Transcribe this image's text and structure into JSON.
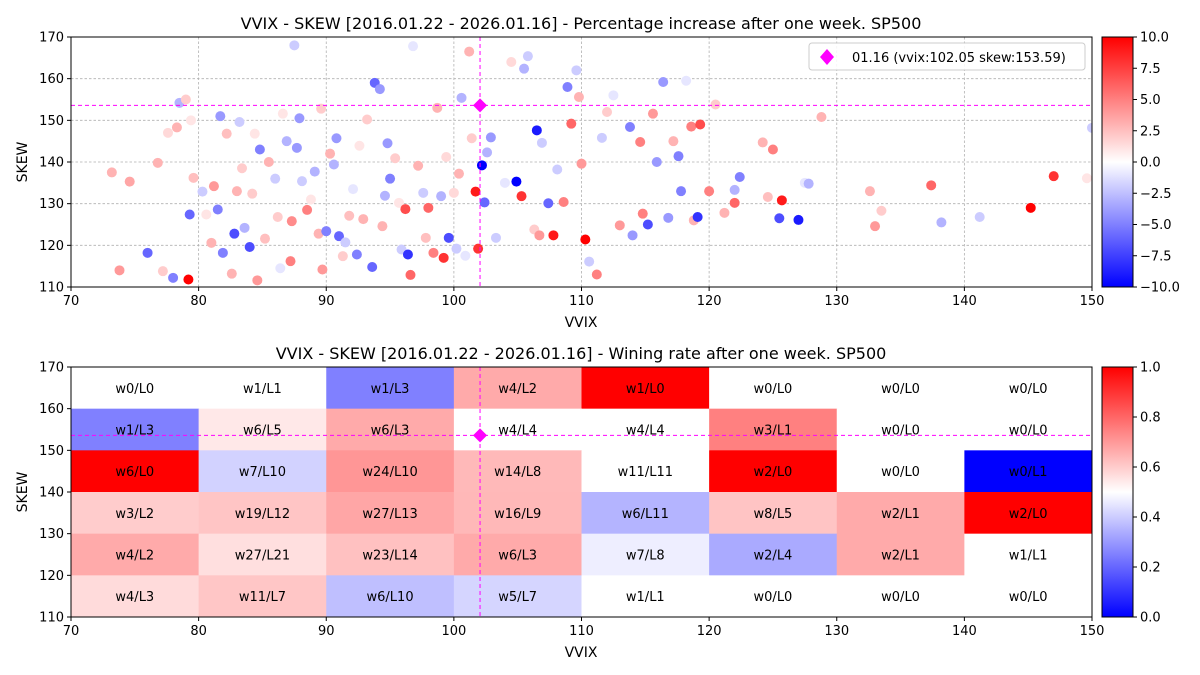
{
  "chart_data": [
    {
      "type": "scatter",
      "title": "VVIX - SKEW [2016.01.22 - 2026.01.16]  - Percentage increase after one week. SP500",
      "xlabel": "VVIX",
      "ylabel": "SKEW",
      "xlim": [
        70,
        150
      ],
      "ylim": [
        110,
        170
      ],
      "xticks": [
        "70",
        "80",
        "90",
        "100",
        "110",
        "120",
        "130",
        "140",
        "150"
      ],
      "yticks": [
        "110",
        "120",
        "130",
        "140",
        "150",
        "160",
        "170"
      ],
      "grid": true,
      "legend": {
        "location": "top-right",
        "label": "01.16 (vvix:102.05 skew:153.59)"
      },
      "colorbar": {
        "min": -10.0,
        "max": 10.0,
        "ticks": [
          "10.0",
          "7.5",
          "5.0",
          "2.5",
          "0.0",
          "−2.5",
          "−5.0",
          "−7.5",
          "−10.0"
        ]
      },
      "current": {
        "x": 102.05,
        "y": 153.59,
        "color": "#ff00ff"
      },
      "points": [
        [
          73.2,
          137.5,
          3.0
        ],
        [
          73.8,
          114.0,
          4.0
        ],
        [
          74.6,
          135.3,
          3.5
        ],
        [
          76.0,
          118.2,
          -6.0
        ],
        [
          76.8,
          139.8,
          3.0
        ],
        [
          77.2,
          113.8,
          2.0
        ],
        [
          77.6,
          147.0,
          1.5
        ],
        [
          78.0,
          112.2,
          -5.0
        ],
        [
          78.3,
          148.3,
          3.0
        ],
        [
          78.5,
          154.2,
          -3.0
        ],
        [
          79.0,
          155.0,
          2.0
        ],
        [
          79.2,
          111.8,
          10.0
        ],
        [
          79.3,
          127.4,
          -6.0
        ],
        [
          79.4,
          150.0,
          1.0
        ],
        [
          79.6,
          136.2,
          2.5
        ],
        [
          80.3,
          132.9,
          -2.0
        ],
        [
          80.6,
          127.4,
          1.0
        ],
        [
          81.0,
          120.6,
          3.0
        ],
        [
          81.2,
          134.2,
          4.0
        ],
        [
          81.5,
          128.6,
          -5.0
        ],
        [
          81.7,
          151.0,
          -4.0
        ],
        [
          81.9,
          118.2,
          -5.0
        ],
        [
          82.2,
          146.8,
          2.5
        ],
        [
          82.6,
          113.2,
          3.0
        ],
        [
          82.8,
          122.8,
          -7.0
        ],
        [
          83.0,
          133.0,
          3.0
        ],
        [
          83.2,
          149.6,
          -2.0
        ],
        [
          83.4,
          138.5,
          2.0
        ],
        [
          83.6,
          124.2,
          -3.0
        ],
        [
          84.0,
          119.6,
          -7.0
        ],
        [
          84.2,
          132.4,
          2.0
        ],
        [
          84.4,
          146.8,
          1.0
        ],
        [
          84.6,
          111.6,
          4.0
        ],
        [
          84.8,
          143.0,
          -5.0
        ],
        [
          85.2,
          121.6,
          2.5
        ],
        [
          85.5,
          140.0,
          3.0
        ],
        [
          86.0,
          136.0,
          -2.0
        ],
        [
          86.2,
          126.8,
          2.0
        ],
        [
          86.4,
          114.5,
          -1.0
        ],
        [
          86.6,
          151.6,
          1.0
        ],
        [
          86.9,
          145.0,
          -3.0
        ],
        [
          87.2,
          116.2,
          5.0
        ],
        [
          87.3,
          125.8,
          4.5
        ],
        [
          87.5,
          168.0,
          -2.0
        ],
        [
          87.7,
          143.4,
          -4.0
        ],
        [
          87.9,
          150.5,
          -4.0
        ],
        [
          88.1,
          135.4,
          -2.0
        ],
        [
          88.5,
          128.5,
          5.0
        ],
        [
          88.8,
          131.0,
          1.0
        ],
        [
          89.1,
          137.7,
          -3.0
        ],
        [
          89.4,
          122.8,
          3.0
        ],
        [
          89.6,
          152.8,
          2.0
        ],
        [
          89.7,
          114.2,
          4.0
        ],
        [
          90.0,
          123.4,
          -5.0
        ],
        [
          90.3,
          142.0,
          3.0
        ],
        [
          90.6,
          139.4,
          -3.0
        ],
        [
          90.8,
          145.7,
          -4.0
        ],
        [
          91.0,
          122.2,
          -6.0
        ],
        [
          91.3,
          117.4,
          2.0
        ],
        [
          91.5,
          120.7,
          -2.0
        ],
        [
          91.8,
          127.1,
          2.5
        ],
        [
          92.1,
          133.5,
          -1.0
        ],
        [
          92.4,
          117.8,
          -5.0
        ],
        [
          92.6,
          143.9,
          1.0
        ],
        [
          92.9,
          126.3,
          3.0
        ],
        [
          93.2,
          150.2,
          2.0
        ],
        [
          93.6,
          114.8,
          -6.0
        ],
        [
          93.8,
          159.0,
          -6.0
        ],
        [
          94.2,
          157.5,
          -4.0
        ],
        [
          94.4,
          124.6,
          3.0
        ],
        [
          94.6,
          131.9,
          -3.0
        ],
        [
          94.8,
          144.5,
          -4.0
        ],
        [
          95.0,
          136.0,
          -5.0
        ],
        [
          95.4,
          140.9,
          2.0
        ],
        [
          95.7,
          130.2,
          1.0
        ],
        [
          95.9,
          119.0,
          -2.0
        ],
        [
          96.2,
          128.7,
          7.0
        ],
        [
          96.4,
          117.8,
          -8.0
        ],
        [
          96.6,
          112.9,
          6.0
        ],
        [
          96.8,
          167.8,
          -1.0
        ],
        [
          97.2,
          139.1,
          3.0
        ],
        [
          97.6,
          132.6,
          -2.0
        ],
        [
          97.8,
          121.8,
          2.5
        ],
        [
          98.0,
          129.0,
          6.0
        ],
        [
          98.4,
          118.2,
          5.0
        ],
        [
          98.7,
          153.0,
          3.0
        ],
        [
          99.0,
          131.8,
          -3.0
        ],
        [
          99.2,
          117.0,
          8.0
        ],
        [
          99.4,
          141.2,
          1.5
        ],
        [
          99.6,
          121.8,
          -7.0
        ],
        [
          100.0,
          132.6,
          1.5
        ],
        [
          100.2,
          119.2,
          -2.0
        ],
        [
          100.4,
          137.2,
          3.0
        ],
        [
          100.6,
          155.4,
          -3.0
        ],
        [
          100.9,
          117.5,
          -1.0
        ],
        [
          101.2,
          166.5,
          3.0
        ],
        [
          101.4,
          145.7,
          2.0
        ],
        [
          101.7,
          132.9,
          9.0
        ],
        [
          101.9,
          119.2,
          8.0
        ],
        [
          102.2,
          139.2,
          -10.0
        ],
        [
          102.4,
          130.3,
          -6.0
        ],
        [
          102.6,
          142.3,
          -3.0
        ],
        [
          102.9,
          145.9,
          -4.0
        ],
        [
          103.3,
          121.8,
          -2.0
        ],
        [
          104.0,
          135.0,
          -1.0
        ],
        [
          104.5,
          164.0,
          1.5
        ],
        [
          104.9,
          135.3,
          -10.0
        ],
        [
          105.3,
          131.8,
          8.0
        ],
        [
          105.5,
          162.4,
          -3.0
        ],
        [
          105.8,
          165.4,
          -2.0
        ],
        [
          106.3,
          123.8,
          2.0
        ],
        [
          106.5,
          147.6,
          -9.0
        ],
        [
          106.7,
          122.4,
          4.0
        ],
        [
          106.9,
          144.6,
          -2.0
        ],
        [
          107.4,
          130.1,
          -6.0
        ],
        [
          107.8,
          122.4,
          9.0
        ],
        [
          108.1,
          138.2,
          -2.0
        ],
        [
          108.6,
          130.4,
          5.0
        ],
        [
          108.9,
          158.0,
          -5.0
        ],
        [
          109.2,
          149.2,
          6.0
        ],
        [
          109.6,
          162.0,
          -2.0
        ],
        [
          109.8,
          155.6,
          3.0
        ],
        [
          110.0,
          139.6,
          4.0
        ],
        [
          110.3,
          121.4,
          10.0
        ],
        [
          110.6,
          116.1,
          -2.0
        ],
        [
          111.2,
          113.0,
          5.0
        ],
        [
          111.6,
          145.8,
          -2.0
        ],
        [
          112.0,
          152.0,
          2.0
        ],
        [
          112.5,
          156.0,
          -1.0
        ],
        [
          113.0,
          124.8,
          4.0
        ],
        [
          113.8,
          148.4,
          -5.0
        ],
        [
          114.0,
          122.4,
          -4.0
        ],
        [
          114.6,
          144.8,
          5.0
        ],
        [
          114.8,
          127.6,
          5.0
        ],
        [
          115.2,
          125.0,
          -7.0
        ],
        [
          115.6,
          151.6,
          4.0
        ],
        [
          115.9,
          140.0,
          -4.0
        ],
        [
          116.4,
          159.2,
          -4.0
        ],
        [
          116.8,
          126.6,
          -4.0
        ],
        [
          117.2,
          145.0,
          3.0
        ],
        [
          117.6,
          141.4,
          -5.0
        ],
        [
          117.8,
          133.0,
          -5.0
        ],
        [
          118.2,
          159.5,
          -1.0
        ],
        [
          118.6,
          148.5,
          5.0
        ],
        [
          118.8,
          126.0,
          3.0
        ],
        [
          119.1,
          126.8,
          -8.0
        ],
        [
          119.3,
          149.0,
          7.0
        ],
        [
          120.0,
          133.0,
          5.0
        ],
        [
          120.5,
          153.8,
          2.0
        ],
        [
          121.2,
          127.8,
          3.0
        ],
        [
          122.0,
          133.3,
          -3.0
        ],
        [
          122.0,
          130.2,
          6.0
        ],
        [
          122.4,
          136.4,
          -5.0
        ],
        [
          124.2,
          144.7,
          3.0
        ],
        [
          124.6,
          131.6,
          2.5
        ],
        [
          125.0,
          143.0,
          5.0
        ],
        [
          125.5,
          126.5,
          -7.0
        ],
        [
          125.7,
          130.8,
          9.0
        ],
        [
          127.0,
          126.1,
          -9.0
        ],
        [
          127.5,
          135.0,
          -1.0
        ],
        [
          127.8,
          134.8,
          -3.0
        ],
        [
          128.8,
          150.8,
          3.0
        ],
        [
          132.6,
          133.0,
          3.0
        ],
        [
          133.0,
          124.6,
          4.0
        ],
        [
          133.5,
          128.3,
          2.0
        ],
        [
          137.4,
          134.4,
          6.0
        ],
        [
          138.2,
          125.5,
          -3.0
        ],
        [
          141.2,
          126.8,
          -2.0
        ],
        [
          145.2,
          129.0,
          10.0
        ],
        [
          147.0,
          136.6,
          8.0
        ],
        [
          149.6,
          136.1,
          1.0
        ],
        [
          150.0,
          148.2,
          -2.0
        ]
      ]
    },
    {
      "type": "heatmap",
      "title": "VVIX - SKEW [2016.01.22 - 2026.01.16]  - Wining rate after one week. SP500",
      "xlabel": "VVIX",
      "ylabel": "SKEW",
      "xlim": [
        70,
        150
      ],
      "ylim": [
        110,
        170
      ],
      "xticks": [
        "70",
        "80",
        "90",
        "100",
        "110",
        "120",
        "130",
        "140",
        "150"
      ],
      "yticks": [
        "110",
        "120",
        "130",
        "140",
        "150",
        "160",
        "170"
      ],
      "colorbar": {
        "min": 0.0,
        "max": 1.0,
        "ticks": [
          "1.0",
          "0.8",
          "0.6",
          "0.4",
          "0.2",
          "0.0"
        ]
      },
      "current": {
        "x": 102.05,
        "y": 153.59,
        "color": "#ff00ff"
      },
      "x_bins": [
        70,
        80,
        90,
        100,
        110,
        120,
        130,
        140,
        150
      ],
      "y_bins": [
        110,
        120,
        130,
        140,
        150,
        160,
        170
      ],
      "rows_top_to_bottom": [
        [
          "w0/L0",
          "w1/L1",
          "w1/L3",
          "w4/L2",
          "w1/L0",
          "w0/L0",
          "w0/L0",
          "w0/L0"
        ],
        [
          "w1/L3",
          "w6/L5",
          "w6/L3",
          "w4/L4",
          "w4/L4",
          "w3/L1",
          "w0/L0",
          "w0/L0"
        ],
        [
          "w6/L0",
          "w7/L10",
          "w24/L10",
          "w14/L8",
          "w11/L11",
          "w2/L0",
          "w0/L0",
          "w0/L1"
        ],
        [
          "w3/L2",
          "w19/L12",
          "w27/L13",
          "w16/L9",
          "w6/L11",
          "w8/L5",
          "w2/L1",
          "w2/L0"
        ],
        [
          "w4/L2",
          "w27/L21",
          "w23/L14",
          "w6/L3",
          "w7/L8",
          "w2/L4",
          "w2/L1",
          "w1/L1"
        ],
        [
          "w4/L3",
          "w11/L7",
          "w6/L10",
          "w5/L7",
          "w1/L1",
          "w0/L0",
          "w0/L0",
          "w0/L0"
        ]
      ]
    }
  ]
}
